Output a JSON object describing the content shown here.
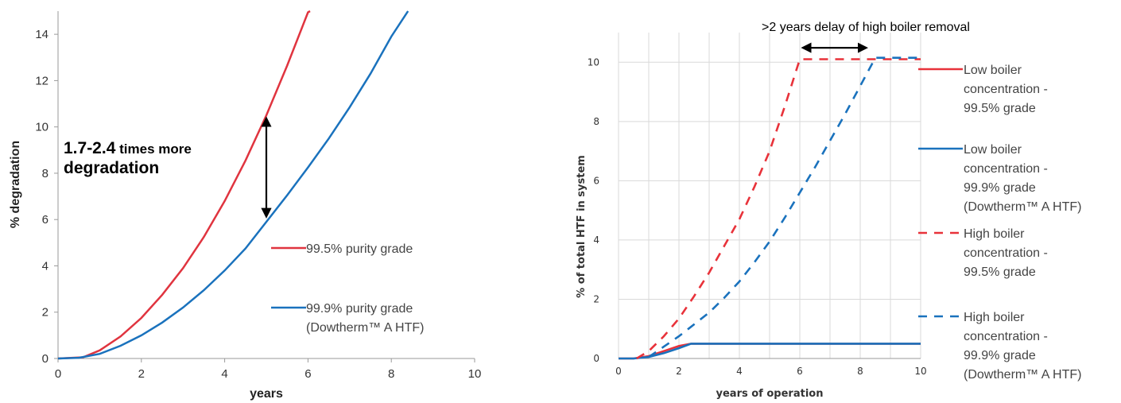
{
  "chart_data": [
    {
      "type": "line",
      "xlabel": "years",
      "ylabel": "% degradation",
      "xlim": [
        0,
        10
      ],
      "ylim": [
        0,
        15
      ],
      "x_ticks": [
        "0",
        "2",
        "4",
        "6",
        "8",
        "10"
      ],
      "y_ticks": [
        "0",
        "2",
        "4",
        "6",
        "8",
        "10",
        "12",
        "14"
      ],
      "grid": false,
      "legend_position": "bottom-right",
      "series": [
        {
          "name": "99.5% purity grade",
          "color": "#e0343f",
          "x": [
            0,
            0.6,
            1,
            1.5,
            2,
            2.5,
            3,
            3.5,
            4,
            4.5,
            5,
            5.5,
            6,
            6.05
          ],
          "y": [
            0,
            0.05,
            0.35,
            0.95,
            1.75,
            2.75,
            3.9,
            5.25,
            6.8,
            8.55,
            10.5,
            12.65,
            14.95,
            15
          ]
        },
        {
          "name_lines": [
            "99.9% purity grade",
            "(Dowtherm™ A HTF)"
          ],
          "color": "#1a72bd",
          "x": [
            0,
            0.5,
            1,
            1.5,
            2,
            2.5,
            3,
            3.5,
            4,
            4.5,
            5,
            5.5,
            6,
            6.5,
            7,
            7.5,
            8,
            8.4
          ],
          "y": [
            0,
            0.03,
            0.2,
            0.55,
            1.0,
            1.55,
            2.2,
            2.95,
            3.8,
            4.75,
            5.9,
            7.05,
            8.25,
            9.5,
            10.85,
            12.3,
            13.9,
            15
          ]
        }
      ],
      "annotation": {
        "line1_big": "1.7-2.4",
        "line1_small": " times more",
        "line2": "degradation",
        "arrow_x": 5,
        "arrow_y": [
          10.5,
          6
        ]
      }
    },
    {
      "type": "line",
      "xlabel": "years of operation",
      "ylabel": "% of total HTF in system",
      "xlim": [
        0,
        10
      ],
      "ylim": [
        0,
        11
      ],
      "x_ticks": [
        "0",
        "2",
        "4",
        "6",
        "8",
        "10"
      ],
      "y_ticks": [
        "0",
        "2",
        "4",
        "6",
        "8",
        "10"
      ],
      "grid": true,
      "legend_position": "right",
      "series": [
        {
          "name_lines": [
            "Low boiler",
            "concentration -",
            "99.5% grade"
          ],
          "color": "#e8323a",
          "dash": false,
          "x": [
            0,
            0.5,
            1,
            1.5,
            2,
            2.4,
            3,
            4,
            6,
            8,
            10
          ],
          "y": [
            0,
            0,
            0.08,
            0.25,
            0.42,
            0.5,
            0.5,
            0.5,
            0.5,
            0.5,
            0.5
          ]
        },
        {
          "name_lines": [
            "Low boiler",
            "concentration -",
            "99.9% grade",
            "(Dowtherm™ A HTF)"
          ],
          "color": "#1a72bd",
          "dash": false,
          "x": [
            0,
            0.5,
            1,
            1.5,
            2,
            2.4,
            3,
            4,
            6,
            8,
            10
          ],
          "y": [
            0,
            0,
            0.05,
            0.18,
            0.35,
            0.5,
            0.5,
            0.5,
            0.5,
            0.5,
            0.5
          ]
        },
        {
          "name_lines": [
            "High boiler",
            "concentration -",
            "99.5% grade"
          ],
          "color": "#e8323a",
          "dash": true,
          "x": [
            0.6,
            1,
            1.5,
            2,
            2.5,
            3,
            3.5,
            4,
            4.5,
            5,
            5.5,
            6,
            7,
            8,
            10
          ],
          "y": [
            0,
            0.25,
            0.75,
            1.35,
            2.1,
            2.9,
            3.8,
            4.7,
            5.8,
            7.0,
            8.5,
            10.1,
            10.1,
            10.1,
            10.1
          ]
        },
        {
          "name_lines": [
            "High boiler",
            "concentration -",
            "99.9% grade",
            "(Dowtherm™ A HTF)"
          ],
          "color": "#1a72bd",
          "dash": true,
          "x": [
            1,
            1.5,
            2,
            2.5,
            3,
            3.5,
            4,
            4.5,
            5,
            5.5,
            6,
            6.5,
            7,
            7.5,
            8,
            8.5,
            10
          ],
          "y": [
            0.05,
            0.4,
            0.75,
            1.15,
            1.55,
            2.05,
            2.6,
            3.25,
            3.95,
            4.75,
            5.6,
            6.45,
            7.35,
            8.25,
            9.2,
            10.15,
            10.15
          ]
        }
      ],
      "annotation": {
        "text_symbol": ">",
        "text": "2 years delay of high boiler removal",
        "arrow_x": [
          6,
          8.3
        ],
        "arrow_y": 10.3
      }
    }
  ]
}
